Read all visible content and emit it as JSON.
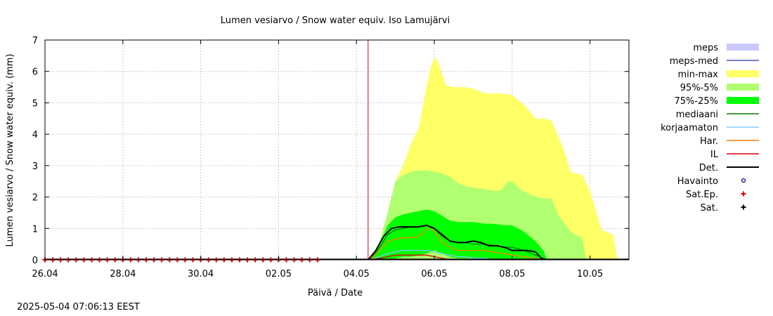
{
  "chart_data": {
    "type": "area",
    "title": "Lumen vesiarvo / Snow water equiv.  Iso Lamujärvi",
    "xlabel": "Päivä / Date",
    "ylabel": "Lumen vesiarvo / Snow water equiv. (mm)",
    "xlim": [
      "2025-04-26",
      "2025-05-11"
    ],
    "ylim": [
      0,
      7
    ],
    "y_ticks": [
      0,
      1,
      2,
      3,
      4,
      5,
      6,
      7
    ],
    "x_ticks": [
      "26.04",
      "28.04",
      "30.04",
      "02.05",
      "04.05",
      "06.05",
      "08.05",
      "10.05"
    ],
    "x_tick_days": [
      0,
      2,
      4,
      6,
      8,
      10,
      12,
      14
    ],
    "grid": true,
    "legend_position": "right",
    "now_marker_day": 8.3,
    "series": [
      {
        "name": "meps",
        "kind": "band",
        "color": "#c8c8ff",
        "x": [],
        "low": [],
        "high": []
      },
      {
        "name": "meps-med",
        "kind": "line",
        "color": "#5050c8",
        "x": [],
        "y": []
      },
      {
        "name": "min-max",
        "kind": "band",
        "color": "#ffff66",
        "x": [
          8.3,
          8.6,
          8.8,
          9.0,
          9.2,
          9.4,
          9.6,
          9.8,
          9.9,
          10.0,
          10.1,
          10.3,
          10.5,
          10.8,
          11.0,
          11.3,
          11.5,
          11.7,
          12.0,
          12.3,
          12.6,
          12.8,
          13.0,
          13.3,
          13.5,
          13.8,
          14.0,
          14.3,
          14.6,
          14.7
        ],
        "high": [
          0.0,
          0.3,
          1.2,
          2.5,
          3.0,
          3.7,
          4.2,
          5.5,
          6.1,
          6.45,
          6.3,
          5.55,
          5.5,
          5.5,
          5.45,
          5.3,
          5.3,
          5.3,
          5.25,
          4.95,
          4.5,
          4.5,
          4.45,
          3.6,
          2.8,
          2.7,
          2.2,
          0.95,
          0.8,
          0.0
        ],
        "low": [
          0.0,
          0.0,
          0.0,
          0.0,
          0.0,
          0.0,
          0.0,
          0.0,
          0.0,
          0.0,
          0.0,
          0.0,
          0.0,
          0.0,
          0.0,
          0.0,
          0.0,
          0.0,
          0.0,
          0.0,
          0.0,
          0.0,
          0.0,
          0.0,
          0.0,
          0.0,
          0.0,
          0.0,
          0.0,
          0.0
        ]
      },
      {
        "name": "95%-5%",
        "kind": "band",
        "color": "#b0ff70",
        "x": [
          8.35,
          8.6,
          8.8,
          9.0,
          9.2,
          9.4,
          9.6,
          9.8,
          10.0,
          10.2,
          10.4,
          10.6,
          10.8,
          11.0,
          11.3,
          11.5,
          11.7,
          11.9,
          12.0,
          12.2,
          12.5,
          12.8,
          13.0,
          13.2,
          13.5,
          13.8,
          13.9
        ],
        "high": [
          0.0,
          0.6,
          1.5,
          2.5,
          2.7,
          2.8,
          2.85,
          2.85,
          2.8,
          2.75,
          2.65,
          2.45,
          2.35,
          2.3,
          2.25,
          2.2,
          2.2,
          2.5,
          2.5,
          2.25,
          2.05,
          1.95,
          1.95,
          1.4,
          0.9,
          0.7,
          0.0
        ],
        "low": [
          0.0,
          0.0,
          0.0,
          0.0,
          0.0,
          0.0,
          0.0,
          0.0,
          0.0,
          0.0,
          0.0,
          0.0,
          0.0,
          0.0,
          0.0,
          0.0,
          0.0,
          0.0,
          0.0,
          0.0,
          0.0,
          0.0,
          0.0,
          0.0,
          0.0,
          0.0,
          0.0
        ]
      },
      {
        "name": "75%-25%",
        "kind": "band",
        "color": "#00ff00",
        "x": [
          8.35,
          8.6,
          8.8,
          9.0,
          9.2,
          9.4,
          9.6,
          9.8,
          10.0,
          10.2,
          10.4,
          10.6,
          10.8,
          11.0,
          11.3,
          11.5,
          11.8,
          12.0,
          12.3,
          12.6,
          12.8,
          12.9
        ],
        "high": [
          0.0,
          0.5,
          1.1,
          1.35,
          1.45,
          1.5,
          1.55,
          1.6,
          1.55,
          1.4,
          1.25,
          1.2,
          1.2,
          1.2,
          1.15,
          1.15,
          1.1,
          1.1,
          0.9,
          0.6,
          0.3,
          0.0
        ],
        "low": [
          0.0,
          0.0,
          0.0,
          0.05,
          0.1,
          0.1,
          0.15,
          0.2,
          0.3,
          0.2,
          0.1,
          0.05,
          0.05,
          0.05,
          0.05,
          0.0,
          0.0,
          0.0,
          0.0,
          0.0,
          0.0,
          0.0
        ]
      },
      {
        "name": "mediaani",
        "kind": "line",
        "color": "#008000",
        "x": [
          8.35,
          8.6,
          8.8,
          9.0,
          9.2,
          9.4,
          9.6,
          9.8,
          10.0,
          10.2,
          10.4,
          10.6,
          10.8,
          11.0,
          11.3,
          11.5,
          11.8,
          12.0,
          12.3,
          12.6,
          12.8,
          12.9
        ],
        "y": [
          0.0,
          0.4,
          0.8,
          0.95,
          1.0,
          1.05,
          1.05,
          1.1,
          1.0,
          0.75,
          0.6,
          0.55,
          0.55,
          0.5,
          0.5,
          0.45,
          0.4,
          0.4,
          0.3,
          0.15,
          0.05,
          0.0
        ]
      },
      {
        "name": "korjaamaton",
        "kind": "line",
        "color": "#80c8ff",
        "x": [
          8.35,
          8.6,
          8.8,
          9.0,
          9.2,
          9.4,
          9.6,
          9.8,
          10.0,
          10.2,
          10.4,
          10.6,
          10.8,
          11.0,
          11.3,
          11.6
        ],
        "y": [
          0.0,
          0.1,
          0.2,
          0.25,
          0.3,
          0.3,
          0.3,
          0.3,
          0.25,
          0.2,
          0.15,
          0.1,
          0.1,
          0.05,
          0.05,
          0.0
        ]
      },
      {
        "name": "Har.",
        "kind": "line",
        "color": "#ff8000",
        "x": [
          8.35,
          8.6,
          8.8,
          9.0,
          9.2,
          9.4,
          9.6,
          9.8,
          9.9,
          10.0,
          10.2,
          10.4,
          10.6,
          10.8,
          11.0,
          11.3,
          11.5,
          11.8,
          12.0,
          12.3,
          12.6,
          12.8
        ],
        "y": [
          0.0,
          0.3,
          0.6,
          0.65,
          0.7,
          0.7,
          0.75,
          0.95,
          1.05,
          0.9,
          0.55,
          0.4,
          0.3,
          0.3,
          0.3,
          0.3,
          0.25,
          0.2,
          0.15,
          0.1,
          0.05,
          0.0
        ]
      },
      {
        "name": "IL",
        "kind": "line",
        "color": "#e00000",
        "x": [
          8.35,
          8.6,
          8.8,
          9.0,
          9.2,
          9.4,
          9.6,
          9.8,
          10.0,
          10.2,
          10.4
        ],
        "y": [
          0.0,
          0.05,
          0.1,
          0.15,
          0.15,
          0.15,
          0.15,
          0.15,
          0.1,
          0.05,
          0.0
        ]
      },
      {
        "name": "Det.",
        "kind": "line",
        "color": "#000000",
        "x": [
          8.3,
          8.5,
          8.7,
          8.9,
          9.1,
          9.3,
          9.6,
          9.8,
          10.0,
          10.2,
          10.4,
          10.6,
          10.8,
          11.0,
          11.2,
          11.4,
          11.6,
          11.8,
          12.0,
          12.2,
          12.4,
          12.6,
          12.75,
          12.8
        ],
        "y": [
          0.0,
          0.3,
          0.75,
          1.0,
          1.05,
          1.05,
          1.05,
          1.1,
          1.0,
          0.8,
          0.6,
          0.55,
          0.55,
          0.6,
          0.55,
          0.45,
          0.45,
          0.4,
          0.3,
          0.3,
          0.3,
          0.25,
          0.05,
          0.0
        ]
      },
      {
        "name": "Havainto",
        "kind": "points",
        "marker": "circle",
        "color": "#000080",
        "x": [],
        "y": []
      },
      {
        "name": "Sat.Ep.",
        "kind": "points",
        "marker": "plus",
        "color": "#e00000",
        "x": [
          0.0,
          0.2,
          0.4,
          0.6,
          0.8,
          1.0,
          1.2,
          1.4,
          1.6,
          1.8,
          2.0,
          2.2,
          2.4,
          2.6,
          2.8,
          3.0,
          3.2,
          3.4,
          3.6,
          3.8,
          4.0,
          4.2,
          4.4,
          4.6,
          4.8,
          5.0,
          5.2,
          5.4,
          5.6,
          5.8,
          6.0,
          6.2,
          6.4,
          6.6,
          6.8,
          7.0
        ],
        "y": [
          0,
          0,
          0,
          0,
          0,
          0,
          0,
          0,
          0,
          0,
          0,
          0,
          0,
          0,
          0,
          0,
          0,
          0,
          0,
          0,
          0,
          0,
          0,
          0,
          0,
          0,
          0,
          0,
          0,
          0,
          0,
          0,
          0,
          0,
          0,
          0
        ]
      },
      {
        "name": "Sat.",
        "kind": "points",
        "marker": "plus",
        "color": "#000000",
        "x": [],
        "y": []
      }
    ]
  },
  "footer": {
    "timestamp": "2025-05-04 07:06:13 EEST"
  }
}
